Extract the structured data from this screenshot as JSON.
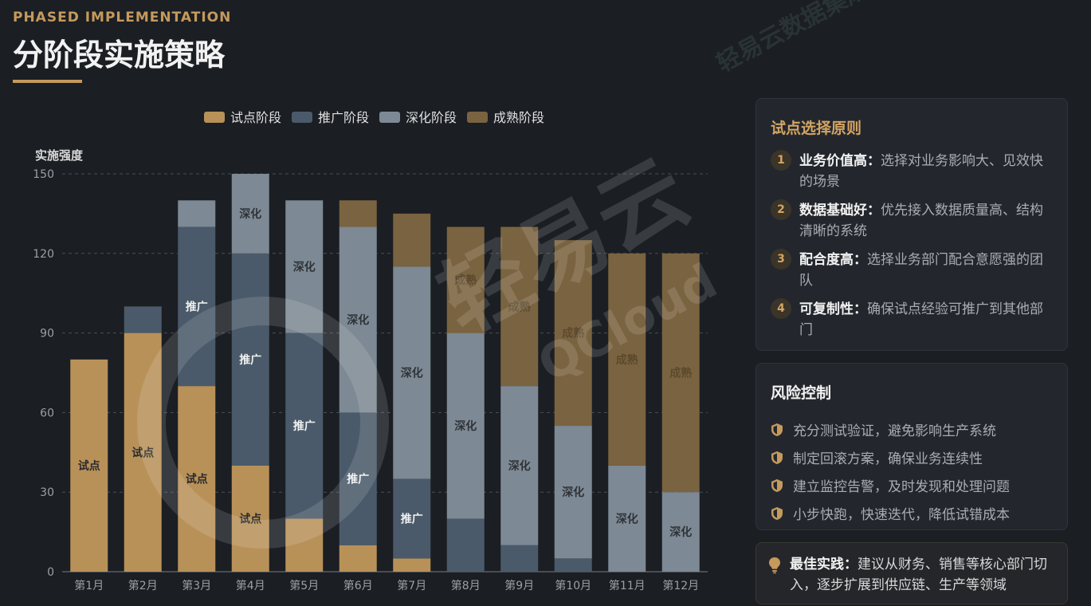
{
  "header": {
    "eyebrow": "PHASED IMPLEMENTATION",
    "title": "分阶段实施策略"
  },
  "watermark": {
    "text": "轻易云数据集成平台",
    "brand": "轻易云",
    "brand_en": "QCloud"
  },
  "chart_data": {
    "type": "bar",
    "stacked": true,
    "categories": [
      "第1月",
      "第2月",
      "第3月",
      "第4月",
      "第5月",
      "第6月",
      "第7月",
      "第8月",
      "第9月",
      "第10月",
      "第11月",
      "第12月"
    ],
    "series": [
      {
        "name": "试点阶段",
        "color": "#b89159",
        "values": [
          80,
          90,
          70,
          40,
          20,
          10,
          5,
          0,
          0,
          0,
          0,
          0
        ]
      },
      {
        "name": "推广阶段",
        "color": "#4a5a6a",
        "values": [
          0,
          10,
          60,
          80,
          70,
          50,
          30,
          20,
          10,
          5,
          0,
          0
        ]
      },
      {
        "name": "深化阶段",
        "color": "#7d8994",
        "values": [
          0,
          0,
          10,
          30,
          50,
          70,
          80,
          70,
          60,
          50,
          40,
          30
        ]
      },
      {
        "name": "成熟阶段",
        "color": "#7a6340",
        "values": [
          0,
          0,
          0,
          0,
          0,
          10,
          20,
          40,
          60,
          70,
          80,
          90
        ]
      }
    ],
    "segment_labels": [
      "试点",
      "推广",
      "深化",
      "成熟"
    ],
    "ylabel": "实施强度",
    "ylim": [
      0,
      150
    ],
    "yticks": [
      0,
      30,
      60,
      90,
      120,
      150
    ],
    "grid": true,
    "legend": "top-center"
  },
  "principles": {
    "title": "试点选择原则",
    "items": [
      {
        "num": "1",
        "bold": "业务价值高：",
        "text": "选择对业务影响大、见效快的场景"
      },
      {
        "num": "2",
        "bold": "数据基础好：",
        "text": "优先接入数据质量高、结构清晰的系统"
      },
      {
        "num": "3",
        "bold": "配合度高：",
        "text": "选择业务部门配合意愿强的团队"
      },
      {
        "num": "4",
        "bold": "可复制性：",
        "text": "确保试点经验可推广到其他部门"
      }
    ]
  },
  "risk": {
    "title": "风险控制",
    "items": [
      {
        "text": "充分测试验证，避免影响生产系统"
      },
      {
        "text": "制定回滚方案，确保业务连续性"
      },
      {
        "text": "建立监控告警，及时发现和处理问题"
      },
      {
        "text": "小步快跑，快速迭代，降低试错成本"
      }
    ]
  },
  "tip": {
    "bold": "最佳实践：",
    "text": "建议从财务、销售等核心部门切入，逐步扩展到供应链、生产等领域"
  },
  "colors": {
    "accent": "#c59a5c",
    "background": "#1b1e23",
    "card": "#23272d"
  }
}
